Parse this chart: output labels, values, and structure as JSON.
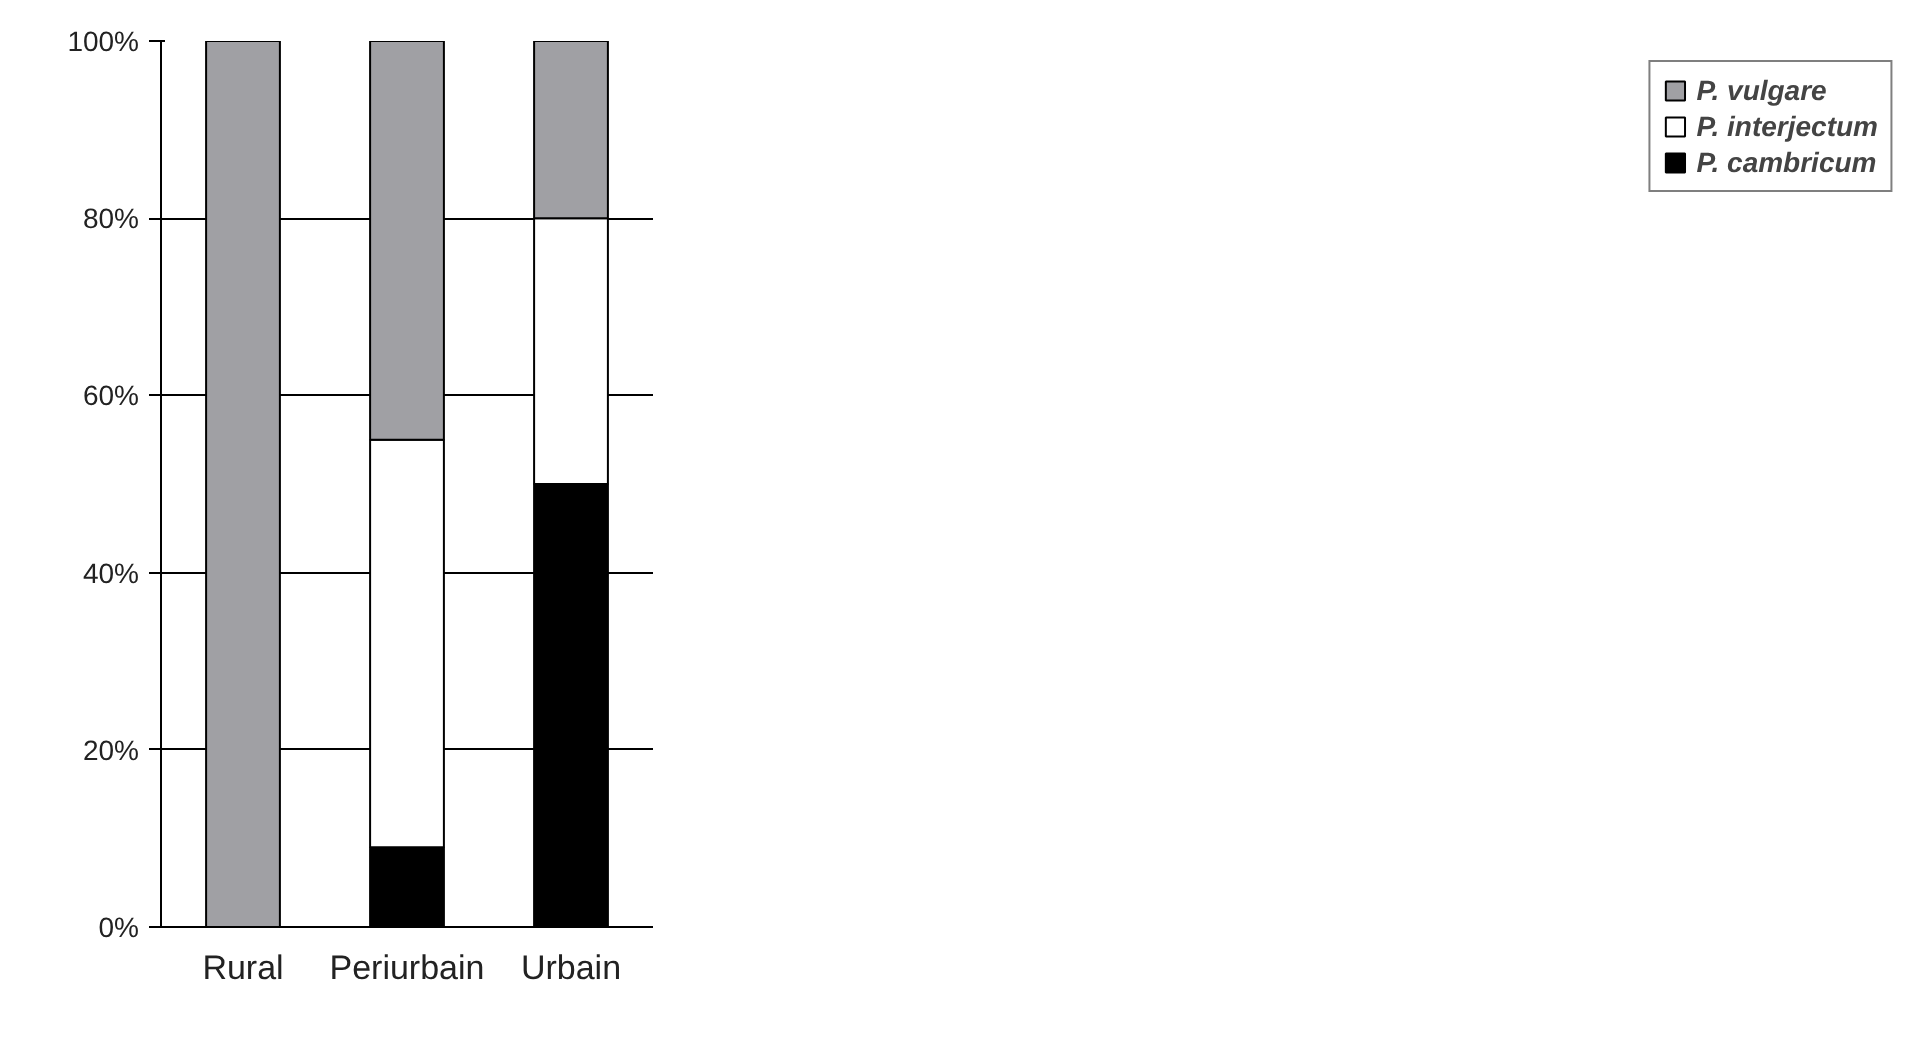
{
  "chart_data": {
    "type": "bar",
    "stacked": true,
    "categories": [
      "Rural",
      "Periurbain",
      "Urbain"
    ],
    "series": [
      {
        "name": "P. cambricum",
        "color": "#000000",
        "values": [
          0,
          9,
          50
        ]
      },
      {
        "name": "P. interjectum",
        "color": "#ffffff",
        "values": [
          0,
          46,
          30
        ]
      },
      {
        "name": "P. vulgare",
        "color": "#a0a0a4",
        "values": [
          100,
          45,
          20
        ]
      }
    ],
    "ylim": [
      0,
      100
    ],
    "yticks": [
      {
        "value": 0,
        "label": "0%"
      },
      {
        "value": 20,
        "label": "20%"
      },
      {
        "value": 40,
        "label": "40%"
      },
      {
        "value": 60,
        "label": "60%"
      },
      {
        "value": 80,
        "label": "80%"
      },
      {
        "value": 100,
        "label": "100%"
      }
    ],
    "grid": "y",
    "legend": "right"
  }
}
